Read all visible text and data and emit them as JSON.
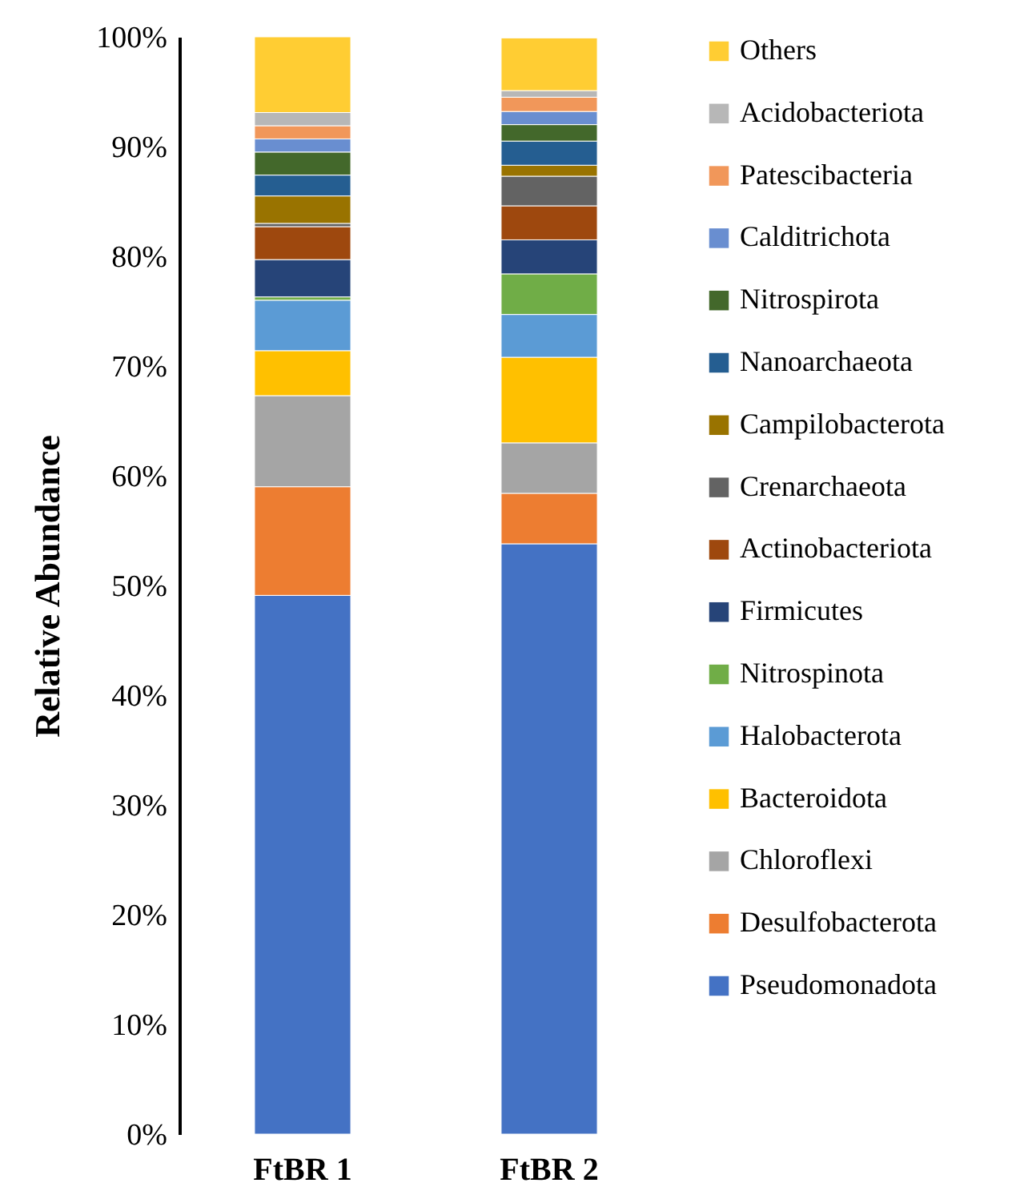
{
  "chart_data": {
    "type": "bar",
    "stacked": true,
    "ylabel": "Relative Abundance",
    "categories": [
      "FtBR 1",
      "FtBR 2"
    ],
    "ylim": [
      0,
      100
    ],
    "yticks": [
      {
        "value": 0,
        "label": "0%"
      },
      {
        "value": 10,
        "label": "10%"
      },
      {
        "value": 20,
        "label": "20%"
      },
      {
        "value": 30,
        "label": "30%"
      },
      {
        "value": 40,
        "label": "40%"
      },
      {
        "value": 50,
        "label": "50%"
      },
      {
        "value": 60,
        "label": "60%"
      },
      {
        "value": 70,
        "label": "70%"
      },
      {
        "value": 80,
        "label": "80%"
      },
      {
        "value": 90,
        "label": "90%"
      },
      {
        "value": 100,
        "label": "100%"
      }
    ],
    "grid": false,
    "legend": "right",
    "series": [
      {
        "name": "Pseudomonadota",
        "color": "#4472c4",
        "values": [
          49.1,
          53.8
        ]
      },
      {
        "name": "Desulfobacterota",
        "color": "#ed7d31",
        "values": [
          9.9,
          4.6
        ]
      },
      {
        "name": "Chloroflexi",
        "color": "#a5a5a5",
        "values": [
          8.3,
          4.6
        ]
      },
      {
        "name": "Bacteroidota",
        "color": "#ffc000",
        "values": [
          4.1,
          7.8
        ]
      },
      {
        "name": "Halobacterota",
        "color": "#5b9bd5",
        "values": [
          4.6,
          3.9
        ]
      },
      {
        "name": "Nitrospinota",
        "color": "#70ad47",
        "values": [
          0.3,
          3.7
        ]
      },
      {
        "name": "Firmicutes",
        "color": "#264478",
        "values": [
          3.4,
          3.1
        ]
      },
      {
        "name": "Actinobacteriota",
        "color": "#9e480e",
        "values": [
          3.0,
          3.1
        ]
      },
      {
        "name": "Crenarchaeota",
        "color": "#636363",
        "values": [
          0.3,
          2.7
        ]
      },
      {
        "name": "Campilobacterota",
        "color": "#997300",
        "values": [
          2.5,
          1.0
        ]
      },
      {
        "name": "Nanoarchaeota",
        "color": "#255e91",
        "values": [
          1.9,
          2.2
        ]
      },
      {
        "name": "Nitrospirota",
        "color": "#43682b",
        "values": [
          2.1,
          1.5
        ]
      },
      {
        "name": "Calditrichota",
        "color": "#698ed0",
        "values": [
          1.2,
          1.2
        ]
      },
      {
        "name": "Patescibacteria",
        "color": "#f1975a",
        "values": [
          1.2,
          1.3
        ]
      },
      {
        "name": "Acidobacteriota",
        "color": "#b7b7b7",
        "values": [
          1.2,
          0.6
        ]
      },
      {
        "name": "Others",
        "color": "#ffcd33",
        "values": [
          6.9,
          4.8
        ]
      }
    ]
  }
}
